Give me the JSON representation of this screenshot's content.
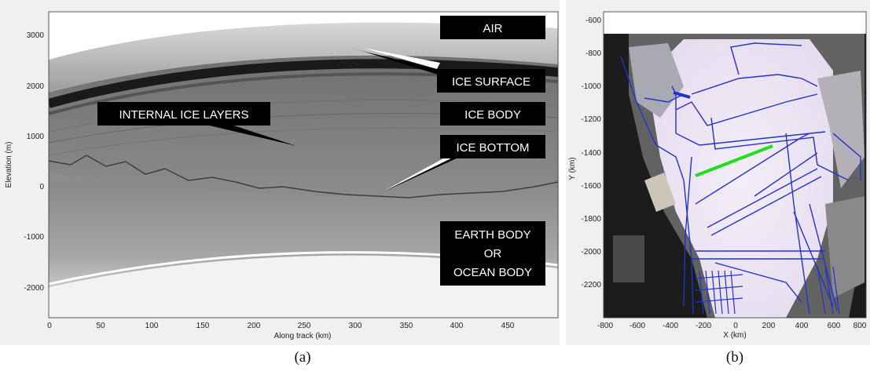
{
  "panel_a": {
    "caption": "(a)",
    "x_axis_label": "Along track (km)",
    "y_axis_label": "Elevation (m)",
    "x_ticks": [
      "0",
      "50",
      "100",
      "150",
      "200",
      "250",
      "300",
      "350",
      "400",
      "450"
    ],
    "y_ticks": [
      "3000",
      "2000",
      "1000",
      "0",
      "-1000",
      "-2000"
    ],
    "labels": {
      "air": "AIR",
      "ice_surface": "ICE SURFACE",
      "internal_layers": "INTERNAL ICE LAYERS",
      "ice_body": "ICE BODY",
      "ice_bottom": "ICE BOTTOM",
      "earth_line1": "EARTH BODY",
      "earth_line2": "OR",
      "earth_line3": "OCEAN BODY"
    }
  },
  "panel_b": {
    "caption": "(b)",
    "x_axis_label": "X (km)",
    "y_axis_label": "Y (km)",
    "x_ticks": [
      "-800",
      "-600",
      "-400",
      "-200",
      "0",
      "200",
      "400",
      "600",
      "800"
    ],
    "y_ticks": [
      "-600",
      "-800",
      "-1000",
      "-1200",
      "-1400",
      "-1600",
      "-1800",
      "-2000",
      "-2200"
    ],
    "colors": {
      "flight_lines": "#2233cc",
      "highlighted_track": "#22dd22"
    }
  }
}
